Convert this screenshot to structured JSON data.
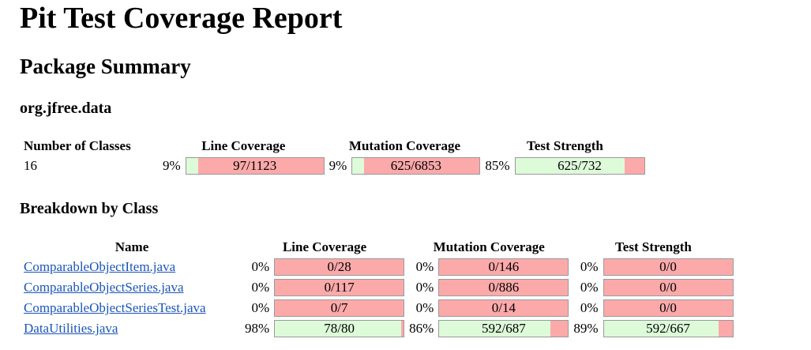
{
  "title": "Pit Test Coverage Report",
  "section_title": "Package Summary",
  "package_name": "org.jfree.data",
  "summary": {
    "headers": {
      "classes": "Number of Classes",
      "line": "Line Coverage",
      "mutation": "Mutation Coverage",
      "strength": "Test Strength"
    },
    "classes": "16",
    "line": {
      "pct": "9%",
      "ratio": "97/1123",
      "fill": 0.09
    },
    "mutation": {
      "pct": "9%",
      "ratio": "625/6853",
      "fill": 0.09
    },
    "strength": {
      "pct": "85%",
      "ratio": "625/732",
      "fill": 0.85
    }
  },
  "breakdown_title": "Breakdown by Class",
  "breakdown_headers": {
    "name": "Name",
    "line": "Line Coverage",
    "mutation": "Mutation Coverage",
    "strength": "Test Strength"
  },
  "rows": [
    {
      "name": "ComparableObjectItem.java",
      "line": {
        "pct": "0%",
        "ratio": "0/28",
        "fill": 0
      },
      "mutation": {
        "pct": "0%",
        "ratio": "0/146",
        "fill": 0
      },
      "strength": {
        "pct": "0%",
        "ratio": "0/0",
        "fill": 0
      }
    },
    {
      "name": "ComparableObjectSeries.java",
      "line": {
        "pct": "0%",
        "ratio": "0/117",
        "fill": 0
      },
      "mutation": {
        "pct": "0%",
        "ratio": "0/886",
        "fill": 0
      },
      "strength": {
        "pct": "0%",
        "ratio": "0/0",
        "fill": 0
      }
    },
    {
      "name": "ComparableObjectSeriesTest.java",
      "line": {
        "pct": "0%",
        "ratio": "0/7",
        "fill": 0
      },
      "mutation": {
        "pct": "0%",
        "ratio": "0/14",
        "fill": 0
      },
      "strength": {
        "pct": "0%",
        "ratio": "0/0",
        "fill": 0
      }
    },
    {
      "name": "DataUtilities.java",
      "line": {
        "pct": "98%",
        "ratio": "78/80",
        "fill": 0.98
      },
      "mutation": {
        "pct": "86%",
        "ratio": "592/687",
        "fill": 0.86
      },
      "strength": {
        "pct": "89%",
        "ratio": "592/667",
        "fill": 0.89
      }
    }
  ],
  "colors": {
    "covered": "#ddfad9",
    "uncovered": "#fca9aa",
    "link": "#1a55b8"
  }
}
